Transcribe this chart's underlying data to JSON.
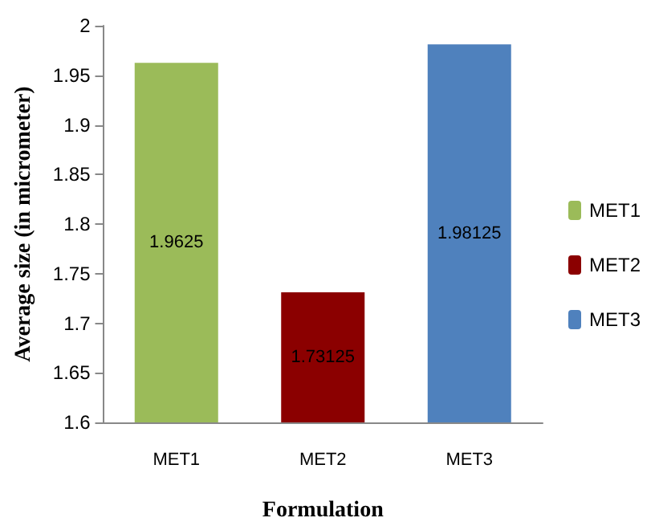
{
  "chart_data": {
    "type": "bar",
    "xlabel": "Formulation",
    "ylabel": "Average size (in micrometer)",
    "categories": [
      "MET1",
      "MET2",
      "MET3"
    ],
    "series": [
      {
        "name": "MET1",
        "color": "#9bbb59",
        "values": [
          1.9625,
          null,
          null
        ]
      },
      {
        "name": "MET2",
        "color": "#8b0000",
        "values": [
          null,
          1.73125,
          null
        ]
      },
      {
        "name": "MET3",
        "color": "#4f81bd",
        "values": [
          null,
          null,
          1.98125
        ]
      }
    ],
    "ylim": [
      1.6,
      2
    ],
    "yticks": [
      1.6,
      1.65,
      1.7,
      1.75,
      1.8,
      1.85,
      1.9,
      1.95,
      2
    ],
    "grid": false,
    "legend": "right",
    "data_labels": true
  }
}
